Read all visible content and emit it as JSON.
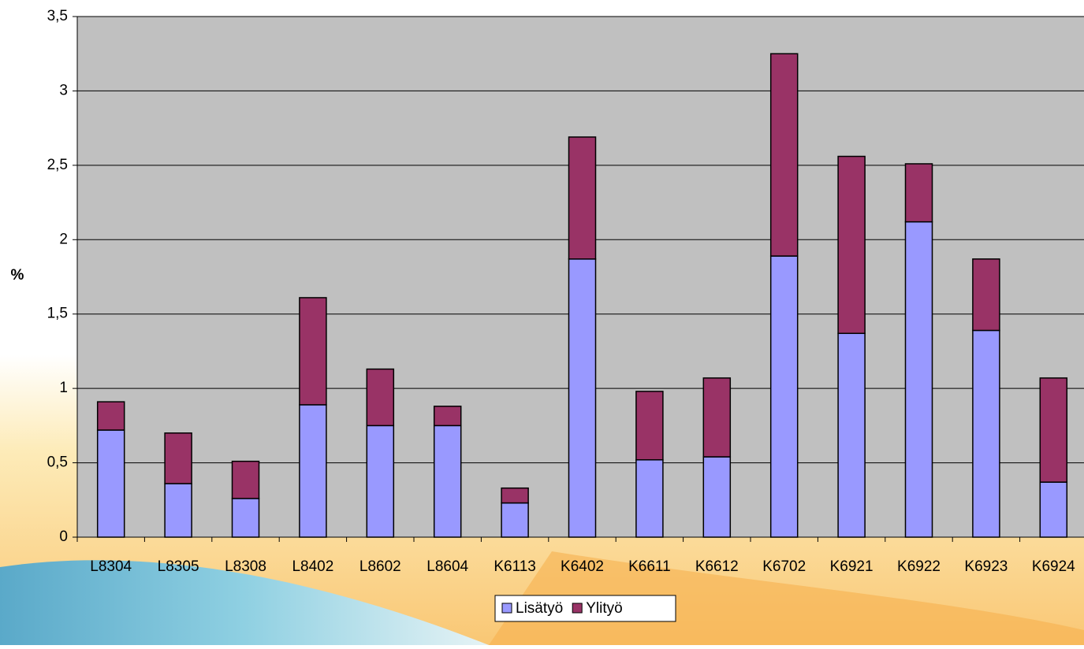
{
  "chart_data": {
    "type": "bar",
    "stacked": true,
    "y_label": "%",
    "categories": [
      "L8304",
      "L8305",
      "L8308",
      "L8402",
      "L8602",
      "L8604",
      "K6113",
      "K6402",
      "K6611",
      "K6612",
      "K6702",
      "K6921",
      "K6922",
      "K6923",
      "K6924"
    ],
    "series": [
      {
        "name": "Lisätyö",
        "color": "#9999ff",
        "values": [
          0.72,
          0.36,
          0.26,
          0.89,
          0.75,
          0.75,
          0.23,
          1.87,
          0.52,
          0.54,
          1.89,
          1.37,
          2.12,
          1.39,
          0.37
        ]
      },
      {
        "name": "Ylityö",
        "color": "#993366",
        "values": [
          0.19,
          0.34,
          0.25,
          0.72,
          0.38,
          0.13,
          0.1,
          0.82,
          0.46,
          0.53,
          1.36,
          1.19,
          0.39,
          0.48,
          0.7
        ]
      }
    ],
    "ylim": [
      0,
      3.5
    ],
    "yticks": [
      0,
      {
        "value": 0.5,
        "label": "0,5"
      },
      1,
      {
        "value": 1.5,
        "label": "1,5"
      },
      2,
      {
        "value": 2.5,
        "label": "2,5"
      },
      3,
      {
        "value": 3.5,
        "label": "3,5"
      }
    ],
    "grid": true,
    "legend": "bottom",
    "plot_background": "#c0c0c0"
  }
}
